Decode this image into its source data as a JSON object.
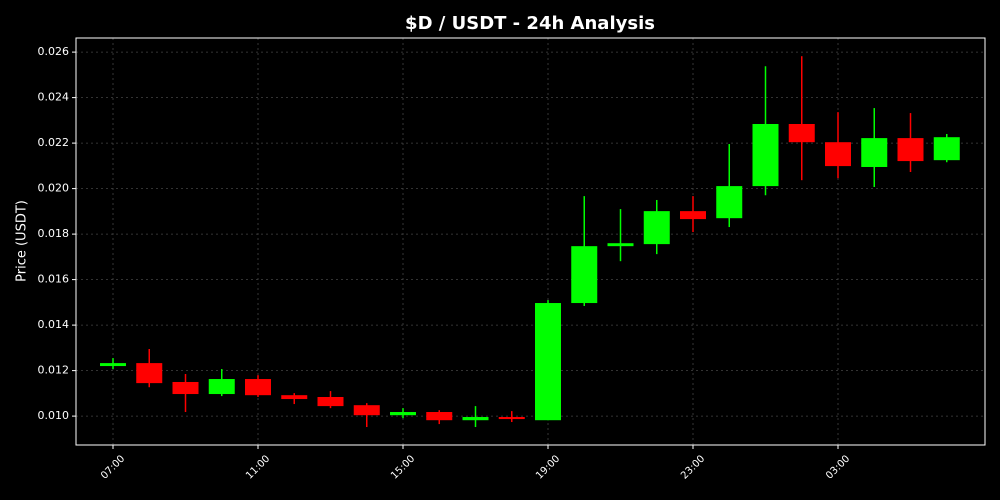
{
  "chart_data": {
    "type": "candlestick",
    "title": "$D / USDT - 24h Analysis",
    "y_label": "Price (USDT)",
    "categories": [
      "07:00",
      null,
      null,
      null,
      "11:00",
      null,
      null,
      null,
      "15:00",
      null,
      null,
      null,
      "19:00",
      null,
      null,
      null,
      "23:00",
      null,
      null,
      null,
      "03:00",
      null,
      null,
      null
    ],
    "open": [
      0.0122,
      0.01233,
      0.0115,
      0.01097,
      0.01163,
      0.01092,
      0.01084,
      0.01048,
      0.01004,
      0.01018,
      0.00982,
      0.00996,
      0.00982,
      0.01497,
      0.01747,
      0.01756,
      0.01901,
      0.0187,
      0.02011,
      0.02284,
      0.02204,
      0.02095,
      0.02222,
      0.02125
    ],
    "high": [
      0.01255,
      0.01295,
      0.01185,
      0.01207,
      0.0118,
      0.01101,
      0.0111,
      0.01057,
      0.01035,
      0.01026,
      0.01044,
      0.01022,
      0.0151,
      0.01967,
      0.0191,
      0.0195,
      0.01967,
      0.02196,
      0.02538,
      0.02582,
      0.02336,
      0.02354,
      0.02332,
      0.0224
    ],
    "low": [
      0.01207,
      0.01127,
      0.01018,
      0.01088,
      0.01084,
      0.01053,
      0.01035,
      0.00952,
      0.00991,
      0.00965,
      0.00952,
      0.00974,
      0.00982,
      0.01484,
      0.01681,
      0.01712,
      0.01809,
      0.01831,
      0.01971,
      0.02037,
      0.02046,
      0.02007,
      0.02073,
      0.02116
    ],
    "close": [
      0.01233,
      0.01145,
      0.01097,
      0.01163,
      0.01092,
      0.01075,
      0.01044,
      0.01004,
      0.01018,
      0.00982,
      0.00996,
      0.00987,
      0.01497,
      0.01747,
      0.0176,
      0.01901,
      0.01866,
      0.02011,
      0.02284,
      0.02204,
      0.02099,
      0.02222,
      0.02121,
      0.02226
    ],
    "up_color": "#00ff00",
    "down_color": "#ff0000",
    "ylim": [
      0.00873,
      0.02662
    ],
    "yticks": [
      {
        "value": 0.01,
        "label": "0.010"
      },
      {
        "value": 0.012,
        "label": "0.012"
      },
      {
        "value": 0.014,
        "label": "0.014"
      },
      {
        "value": 0.016,
        "label": "0.016"
      },
      {
        "value": 0.018,
        "label": "0.018"
      },
      {
        "value": 0.02,
        "label": "0.020"
      },
      {
        "value": 0.022,
        "label": "0.022"
      },
      {
        "value": 0.024,
        "label": "0.024"
      },
      {
        "value": 0.026,
        "label": "0.026"
      }
    ],
    "grid": true
  }
}
